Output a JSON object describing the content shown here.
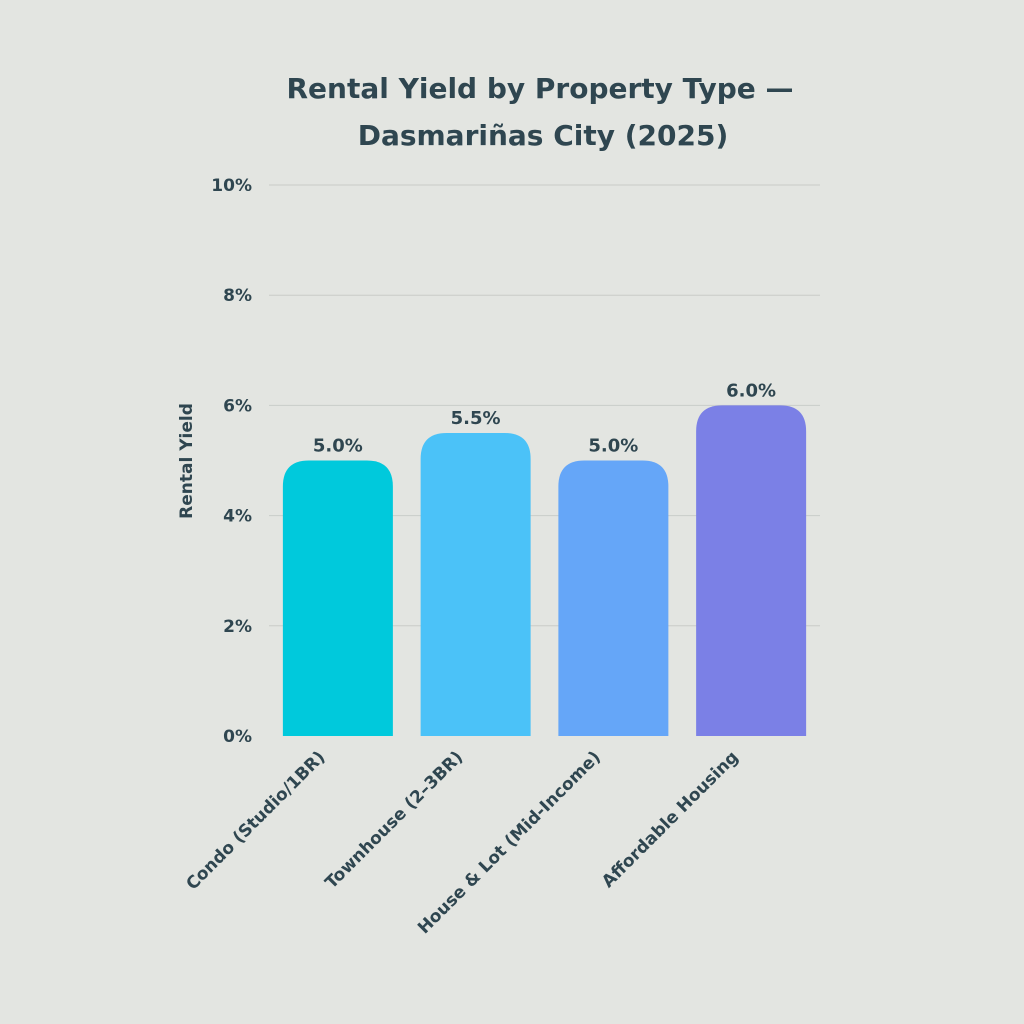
{
  "chart_data": {
    "type": "bar",
    "title_lines": [
      "Rental Yield by Property Type —",
      "Dasmariñas City (2025)"
    ],
    "xlabel": "",
    "ylabel": "Rental Yield",
    "categories": [
      "Condo (Studio/1BR)",
      "Townhouse (2–3BR)",
      "House & Lot (Mid-Income)",
      "Affordable Housing"
    ],
    "values": [
      5.0,
      5.5,
      5.0,
      6.0
    ],
    "value_labels": [
      "5.0%",
      "5.5%",
      "5.0%",
      "6.0%"
    ],
    "colors": [
      "#00c9dc",
      "#4bc2f8",
      "#65a6f8",
      "#7b80e6"
    ],
    "ylim": [
      0,
      10
    ],
    "yticks": [
      0,
      2,
      4,
      6,
      8,
      10
    ],
    "ytick_labels": [
      "0%",
      "2%",
      "4%",
      "6%",
      "8%",
      "10%"
    ],
    "grid": true,
    "legend": "none"
  }
}
